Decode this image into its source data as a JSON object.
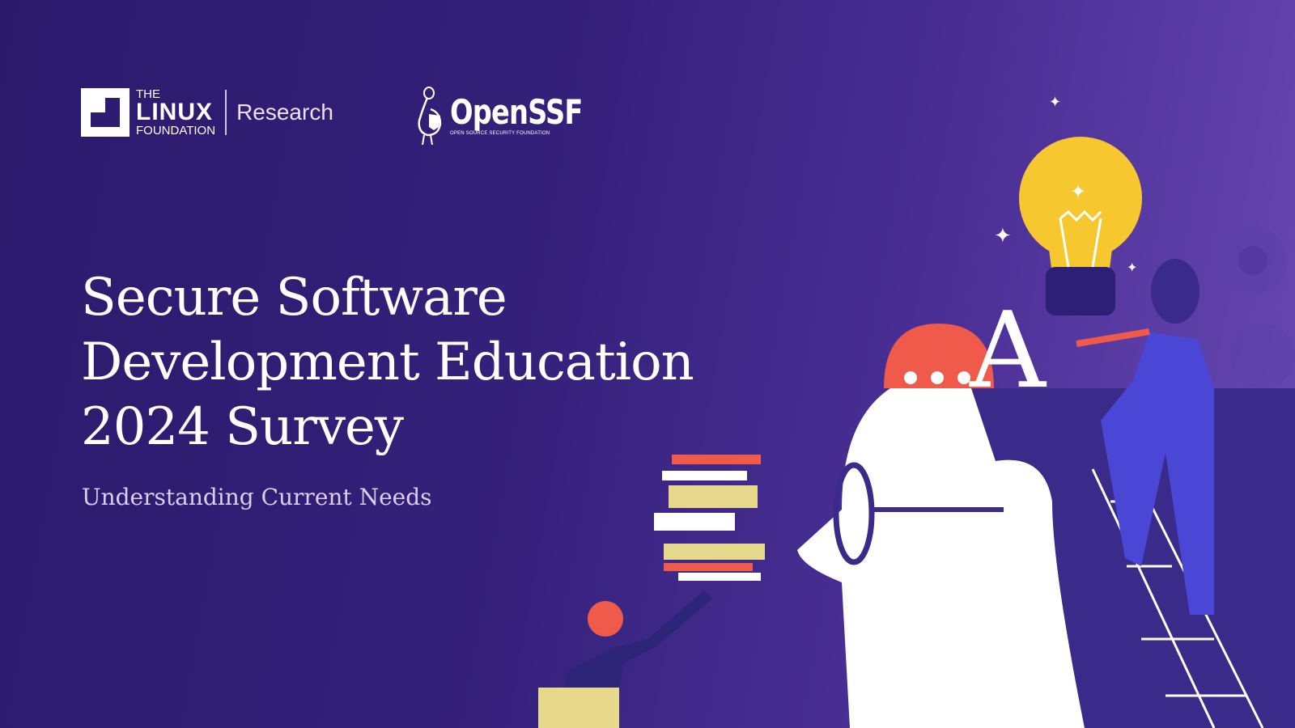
{
  "logos": {
    "linux_foundation": {
      "the": "THE",
      "linux": "LINUX",
      "foundation": "FOUNDATION",
      "division": "Research"
    },
    "openssf": {
      "name": "OpenSSF",
      "tagline": "OPEN SOURCE SECURITY FOUNDATION"
    }
  },
  "cover": {
    "title_lines": [
      "Secure Software",
      "Development Education",
      "2024 Survey"
    ],
    "subtitle": "Understanding Current Needs",
    "illustration_letter": "A"
  },
  "colors": {
    "background_left": "#2b1a6c",
    "background_right": "#6a49b4",
    "bulb": "#f7c72f",
    "speech_bubble": "#ef5a4a",
    "figure_blue": "#4b47d6"
  }
}
